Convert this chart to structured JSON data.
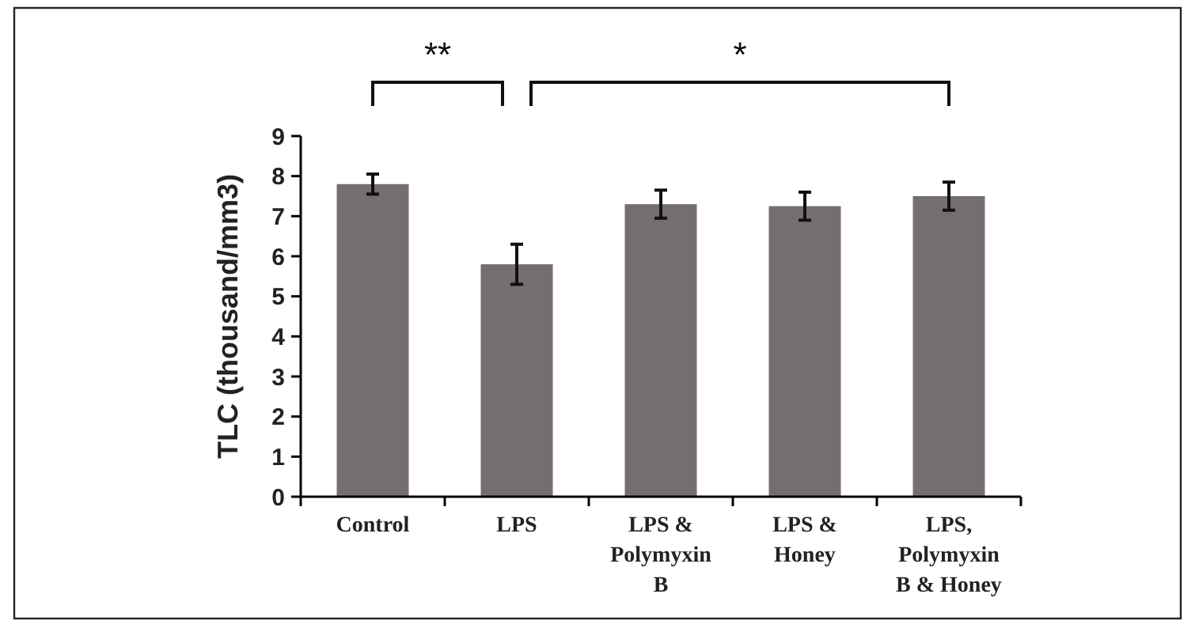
{
  "chart_data": {
    "type": "bar",
    "ylabel": "TLC (thousand/mm3)",
    "categories": [
      "Control",
      "LPS",
      "LPS & Polymyxin B",
      "LPS & Honey",
      "LPS, Polymyxin B & Honey"
    ],
    "values": [
      7.8,
      5.8,
      7.3,
      7.25,
      7.5
    ],
    "errors": [
      0.25,
      0.5,
      0.35,
      0.35,
      0.35
    ],
    "color": "#746e6e",
    "ylim": [
      0,
      9
    ],
    "yticks": [
      0,
      1,
      2,
      3,
      4,
      5,
      6,
      7,
      8,
      9
    ],
    "grid": false,
    "annotations": [
      "**",
      "*"
    ]
  }
}
